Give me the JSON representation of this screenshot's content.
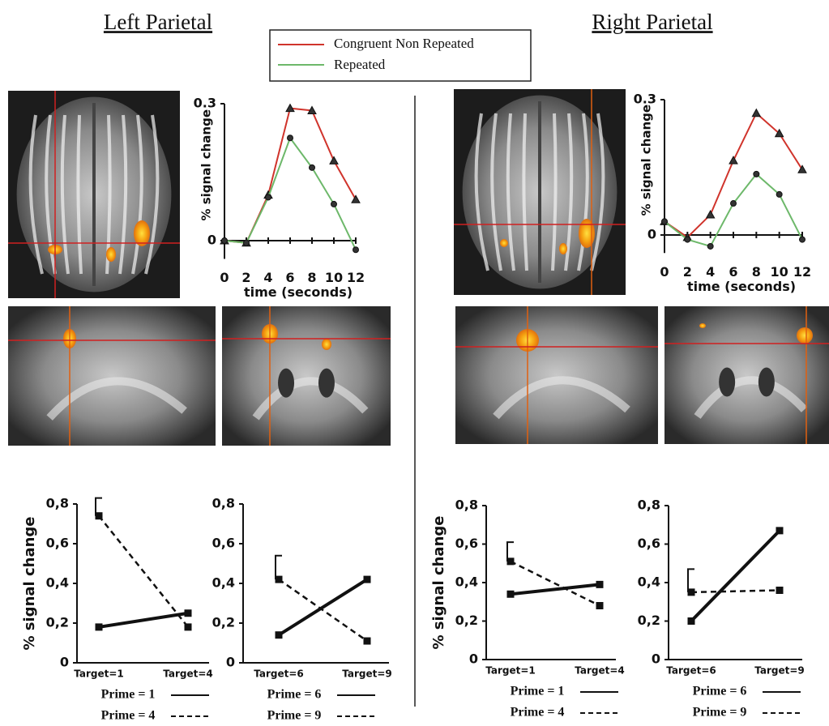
{
  "titles": {
    "left": "Left Parietal",
    "right": "Right Parietal"
  },
  "chart_data": [
    {
      "type": "line",
      "ylabel": "% signal change",
      "xlabel": "time (seconds)",
      "x": [
        0,
        2,
        4,
        6,
        8,
        10,
        12
      ],
      "xlim": [
        0,
        12
      ],
      "xticks": [
        0,
        2,
        4,
        6,
        8,
        10,
        12
      ],
      "ylim": [
        -0.04,
        0.3
      ],
      "yticks": [
        0,
        0.3
      ],
      "series": [
        {
          "name": "Congruent Non Repeated",
          "color": "#d0342c",
          "marker": "triangle",
          "values": [
            0,
            -0.005,
            0.1,
            0.29,
            0.285,
            0.175,
            0.09
          ]
        },
        {
          "name": "Repeated",
          "color": "#6db86a",
          "marker": "circle",
          "values": [
            0,
            -0.005,
            0.095,
            0.225,
            0.16,
            0.08,
            -0.02
          ]
        }
      ]
    },
    {
      "type": "line",
      "ylabel": "% signal change",
      "xlabel": "time (seconds)",
      "x": [
        0,
        2,
        4,
        6,
        8,
        10,
        12
      ],
      "xlim": [
        0,
        12
      ],
      "xticks": [
        0,
        2,
        4,
        6,
        8,
        10,
        12
      ],
      "ylim": [
        -0.04,
        0.3
      ],
      "yticks": [
        0,
        0.3
      ],
      "series": [
        {
          "color": "#d0342c",
          "marker": "triangle",
          "values": [
            0.03,
            -0.005,
            0.045,
            0.165,
            0.27,
            0.225,
            0.145
          ]
        },
        {
          "color": "#6db86a",
          "marker": "circle",
          "values": [
            0.03,
            -0.01,
            -0.025,
            0.07,
            0.135,
            0.09,
            -0.01
          ]
        }
      ]
    },
    {
      "type": "interaction",
      "ylabel": "% signal change",
      "categories": [
        "Target=1",
        "Target=4"
      ],
      "ylim": [
        0,
        0.8
      ],
      "yticks": [
        0,
        {
          "value": 0.2,
          "label": "0,2"
        },
        {
          "value": 0.4,
          "label": "0,4"
        },
        {
          "value": 0.6,
          "label": "0,6"
        },
        {
          "value": 0.8,
          "label": "0,8"
        }
      ],
      "series": [
        {
          "name": "Prime = 1",
          "color": "#111111",
          "dashed": false,
          "values": [
            0.18,
            0.25
          ]
        },
        {
          "name": "Prime = 4",
          "color": "#111111",
          "dashed": true,
          "values": [
            0.74,
            0.18
          ],
          "errors": [
            0.09,
            null
          ]
        }
      ]
    },
    {
      "type": "interaction",
      "categories": [
        "Target=6",
        "Target=9"
      ],
      "ylim": [
        0,
        0.8
      ],
      "yticks": [
        0,
        {
          "value": 0.2,
          "label": "0,2"
        },
        {
          "value": 0.4,
          "label": "0,4"
        },
        {
          "value": 0.6,
          "label": "0,6"
        },
        {
          "value": 0.8,
          "label": "0,8"
        }
      ],
      "series": [
        {
          "name": "Prime = 6",
          "color": "#111111",
          "dashed": false,
          "values": [
            0.14,
            0.42
          ]
        },
        {
          "name": "Prime = 9",
          "color": "#111111",
          "dashed": true,
          "values": [
            0.42,
            0.11
          ],
          "errors": [
            0.12,
            null
          ]
        }
      ]
    },
    {
      "type": "interaction",
      "ylabel": "% signal change",
      "categories": [
        "Target=1",
        "Target=4"
      ],
      "ylim": [
        0,
        0.8
      ],
      "yticks": [
        0,
        {
          "value": 0.2,
          "label": "0,2"
        },
        {
          "value": 0.4,
          "label": "0,4"
        },
        {
          "value": 0.6,
          "label": "0,6"
        },
        {
          "value": 0.8,
          "label": "0,8"
        }
      ],
      "series": [
        {
          "name": "Prime = 1",
          "color": "#111111",
          "dashed": false,
          "values": [
            0.34,
            0.39
          ]
        },
        {
          "name": "Prime = 4",
          "color": "#111111",
          "dashed": true,
          "values": [
            0.51,
            0.28
          ],
          "errors": [
            0.1,
            null
          ]
        }
      ]
    },
    {
      "type": "interaction",
      "categories": [
        "Target=6",
        "Target=9"
      ],
      "ylim": [
        0,
        0.8
      ],
      "yticks": [
        0,
        {
          "value": 0.2,
          "label": "0,2"
        },
        {
          "value": 0.4,
          "label": "0,4"
        },
        {
          "value": 0.6,
          "label": "0,6"
        },
        {
          "value": 0.8,
          "label": "0,8"
        }
      ],
      "series": [
        {
          "name": "Prime = 6",
          "color": "#111111",
          "dashed": false,
          "values": [
            0.2,
            0.67
          ]
        },
        {
          "name": "Prime = 9",
          "color": "#111111",
          "dashed": true,
          "values": [
            0.35,
            0.36
          ],
          "errors": [
            0.12,
            null
          ]
        }
      ]
    }
  ]
}
